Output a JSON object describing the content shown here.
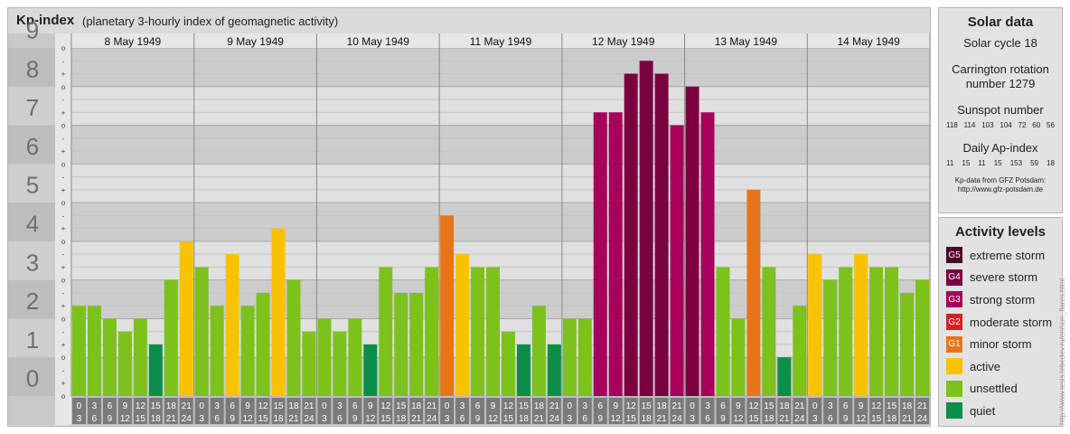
{
  "header": {
    "title": "Kp-index",
    "subtitle": "(planetary 3-hourly index of geomagnetic activity)"
  },
  "chart_data": {
    "type": "bar",
    "title": "Kp-index",
    "subtitle": "(planetary 3-hourly index of geomagnetic activity)",
    "ylim": [
      0,
      9
    ],
    "y_ticks": [
      "0",
      "1",
      "2",
      "3",
      "4",
      "5",
      "6",
      "7",
      "8",
      "9"
    ],
    "y_minor_ticks": [
      "o",
      "+",
      "-"
    ],
    "days": [
      "8 May 1949",
      "9 May 1949",
      "10 May 1949",
      "11 May 1949",
      "12 May 1949",
      "13 May 1949",
      "14 May 1949"
    ],
    "interval_labels": [
      [
        "0",
        "3"
      ],
      [
        "3",
        "6"
      ],
      [
        "6",
        "9"
      ],
      [
        "9",
        "12"
      ],
      [
        "12",
        "15"
      ],
      [
        "15",
        "18"
      ],
      [
        "18",
        "21"
      ],
      [
        "21",
        "24"
      ]
    ],
    "values": [
      [
        2.333,
        2.333,
        2.0,
        1.667,
        2.0,
        1.333,
        3.0,
        4.0
      ],
      [
        3.333,
        2.333,
        3.667,
        2.333,
        2.667,
        4.333,
        3.0,
        1.667
      ],
      [
        2.0,
        1.667,
        2.0,
        1.333,
        3.333,
        2.667,
        2.667,
        3.333
      ],
      [
        4.667,
        3.667,
        3.333,
        3.333,
        1.667,
        1.333,
        2.333,
        1.333
      ],
      [
        2.0,
        2.0,
        7.333,
        7.333,
        8.333,
        8.667,
        8.333,
        7.0
      ],
      [
        8.0,
        7.333,
        3.333,
        2.0,
        5.333,
        3.333,
        1.0,
        2.333
      ],
      [
        3.667,
        3.0,
        3.333,
        3.667,
        3.333,
        3.333,
        2.667,
        3.0
      ]
    ],
    "legend_placement": "right"
  },
  "solar": {
    "heading": "Solar data",
    "cycle": "Solar cycle 18",
    "carrington_line1": "Carrington rotation",
    "carrington_line2": "number 1279",
    "sunspot_label": "Sunspot number",
    "sunspot_values": [
      "118",
      "114",
      "103",
      "104",
      "72",
      "60",
      "56"
    ],
    "ap_label": "Daily Ap-index",
    "ap_values": [
      "11",
      "15",
      "11",
      "15",
      "153",
      "59",
      "18"
    ],
    "credit_line1": "Kp-data from GFZ Potsdam:",
    "credit_line2": "http://www.gfz-potsdam.de"
  },
  "levels": {
    "heading": "Activity levels",
    "items": [
      {
        "code": "G5",
        "label": "extreme storm",
        "color": "#4d0026"
      },
      {
        "code": "G4",
        "label": "severe storm",
        "color": "#7a0040"
      },
      {
        "code": "G3",
        "label": "strong storm",
        "color": "#a8005a"
      },
      {
        "code": "G2",
        "label": "moderate storm",
        "color": "#d62020"
      },
      {
        "code": "G1",
        "label": "minor storm",
        "color": "#e8741a"
      },
      {
        "code": "",
        "label": "active",
        "color": "#f9c200"
      },
      {
        "code": "",
        "label": "unsettled",
        "color": "#7cc21a"
      },
      {
        "code": "",
        "label": "quiet",
        "color": "#0a8f48"
      }
    ]
  },
  "watermark": "http://www.tesis.lebedev.ru/en/sun_flares.html"
}
